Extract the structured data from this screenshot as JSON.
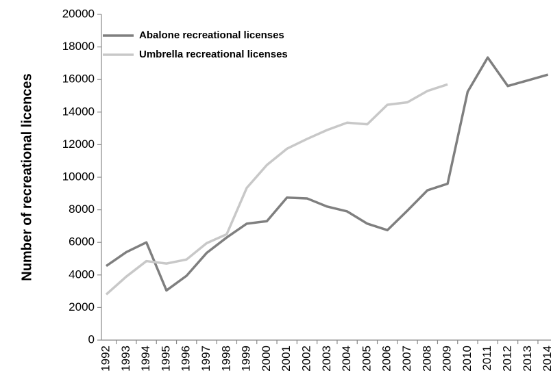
{
  "chart_data": {
    "type": "line",
    "y_label": "Number of recreational licences",
    "categories": [
      "1992",
      "1993",
      "1994",
      "1995",
      "1996",
      "1997",
      "1998",
      "1999",
      "2000",
      "2001",
      "2002",
      "2003",
      "2004",
      "2005",
      "2006",
      "2007",
      "2008",
      "2009",
      "2010",
      "2011",
      "2012",
      "2013",
      "2014"
    ],
    "series": [
      {
        "name": "Abalone recreational licenses",
        "color": "#7f7f7f",
        "values": [
          4550,
          5400,
          6000,
          3050,
          3950,
          5350,
          6300,
          7150,
          7300,
          8750,
          8700,
          8200,
          7900,
          7150,
          6750,
          7950,
          9200,
          9600,
          15250,
          17350,
          15600,
          15950,
          16300
        ]
      },
      {
        "name": "Umbrella recreational licenses",
        "color": "#c8c8c8",
        "values": [
          2800,
          3900,
          4850,
          4700,
          4950,
          5950,
          6500,
          9350,
          10750,
          11750,
          12350,
          12900,
          13350,
          13250,
          14450,
          14600,
          15300,
          15700,
          null,
          null,
          null,
          null,
          null
        ]
      }
    ],
    "ylim": [
      0,
      20000
    ],
    "yticks": [
      0,
      2000,
      4000,
      6000,
      8000,
      10000,
      12000,
      14000,
      16000,
      18000,
      20000
    ],
    "grid": false,
    "legend": "upper-left"
  }
}
